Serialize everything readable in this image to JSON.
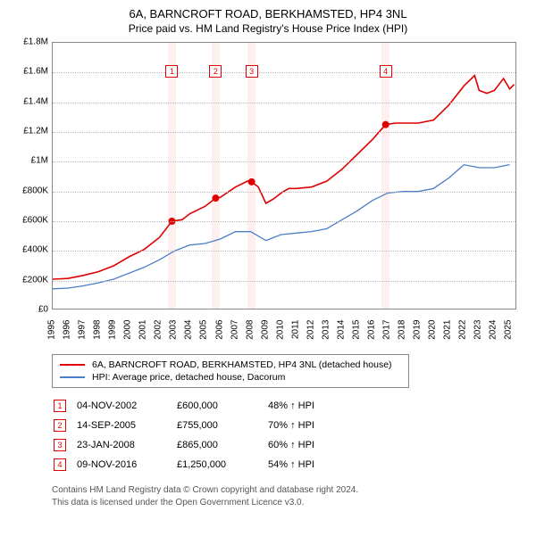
{
  "title": "6A, BARNCROFT ROAD, BERKHAMSTED, HP4 3NL",
  "subtitle": "Price paid vs. HM Land Registry's House Price Index (HPI)",
  "chart": {
    "type": "line",
    "background_color": "#ffffff",
    "grid_color": "#bbbbbb",
    "border_color": "#888888",
    "x_range": [
      1995,
      2025.5
    ],
    "y_range": [
      0,
      1800000
    ],
    "y_ticks": [
      0,
      200000,
      400000,
      600000,
      800000,
      1000000,
      1200000,
      1400000,
      1600000,
      1800000
    ],
    "y_tick_labels": [
      "£0",
      "£200K",
      "£400K",
      "£600K",
      "£800K",
      "£1M",
      "£1.2M",
      "£1.4M",
      "£1.6M",
      "£1.8M"
    ],
    "x_ticks": [
      1995,
      1996,
      1997,
      1998,
      1999,
      2000,
      2001,
      2002,
      2003,
      2004,
      2005,
      2006,
      2007,
      2008,
      2009,
      2010,
      2011,
      2012,
      2013,
      2014,
      2015,
      2016,
      2017,
      2018,
      2019,
      2020,
      2021,
      2022,
      2023,
      2024,
      2025
    ],
    "label_fontsize": 10,
    "title_fontsize": 13,
    "series": [
      {
        "name": "6A, BARNCROFT ROAD, BERKHAMSTED, HP4 3NL (detached house)",
        "color": "#e00000",
        "line_width": 1.6,
        "points": [
          [
            1995,
            210000
          ],
          [
            1996,
            215000
          ],
          [
            1997,
            235000
          ],
          [
            1998,
            260000
          ],
          [
            1999,
            300000
          ],
          [
            2000,
            360000
          ],
          [
            2001,
            410000
          ],
          [
            2002,
            490000
          ],
          [
            2002.83,
            600000
          ],
          [
            2003.5,
            610000
          ],
          [
            2004,
            650000
          ],
          [
            2005,
            700000
          ],
          [
            2005.7,
            755000
          ],
          [
            2006,
            760000
          ],
          [
            2007,
            830000
          ],
          [
            2007.8,
            870000
          ],
          [
            2008.06,
            865000
          ],
          [
            2008.5,
            830000
          ],
          [
            2009,
            720000
          ],
          [
            2009.5,
            750000
          ],
          [
            2010,
            790000
          ],
          [
            2010.5,
            820000
          ],
          [
            2011,
            820000
          ],
          [
            2012,
            830000
          ],
          [
            2013,
            870000
          ],
          [
            2014,
            950000
          ],
          [
            2015,
            1050000
          ],
          [
            2016,
            1150000
          ],
          [
            2016.86,
            1250000
          ],
          [
            2017.5,
            1260000
          ],
          [
            2018,
            1260000
          ],
          [
            2019,
            1260000
          ],
          [
            2020,
            1280000
          ],
          [
            2021,
            1380000
          ],
          [
            2022,
            1510000
          ],
          [
            2022.7,
            1580000
          ],
          [
            2023,
            1480000
          ],
          [
            2023.5,
            1460000
          ],
          [
            2024,
            1480000
          ],
          [
            2024.6,
            1560000
          ],
          [
            2025,
            1490000
          ],
          [
            2025.3,
            1520000
          ]
        ]
      },
      {
        "name": "HPI: Average price, detached house, Dacorum",
        "color": "#4a7ec8",
        "line_width": 1.3,
        "points": [
          [
            1995,
            145000
          ],
          [
            1996,
            150000
          ],
          [
            1997,
            165000
          ],
          [
            1998,
            185000
          ],
          [
            1999,
            210000
          ],
          [
            2000,
            250000
          ],
          [
            2001,
            290000
          ],
          [
            2002,
            340000
          ],
          [
            2003,
            400000
          ],
          [
            2004,
            440000
          ],
          [
            2005,
            450000
          ],
          [
            2006,
            480000
          ],
          [
            2007,
            530000
          ],
          [
            2008,
            530000
          ],
          [
            2009,
            470000
          ],
          [
            2010,
            510000
          ],
          [
            2011,
            520000
          ],
          [
            2012,
            530000
          ],
          [
            2013,
            550000
          ],
          [
            2014,
            610000
          ],
          [
            2015,
            670000
          ],
          [
            2016,
            740000
          ],
          [
            2017,
            790000
          ],
          [
            2018,
            800000
          ],
          [
            2019,
            800000
          ],
          [
            2020,
            820000
          ],
          [
            2021,
            890000
          ],
          [
            2022,
            980000
          ],
          [
            2023,
            960000
          ],
          [
            2024,
            960000
          ],
          [
            2025,
            980000
          ]
        ]
      }
    ],
    "sale_markers": [
      {
        "num": "1",
        "x": 2002.83,
        "y": 600000
      },
      {
        "num": "2",
        "x": 2005.7,
        "y": 755000
      },
      {
        "num": "3",
        "x": 2008.06,
        "y": 865000
      },
      {
        "num": "4",
        "x": 2016.86,
        "y": 1250000
      }
    ],
    "sale_band_color": "rgba(255,0,0,0.06)",
    "sale_band_half_width_years": 0.25,
    "marker_box_top_y": 1650000
  },
  "legend": {
    "items": [
      {
        "color": "#e00000",
        "label": "6A, BARNCROFT ROAD, BERKHAMSTED, HP4 3NL (detached house)"
      },
      {
        "color": "#4a7ec8",
        "label": "HPI: Average price, detached house, Dacorum"
      }
    ]
  },
  "sales_table": {
    "rows": [
      {
        "num": "1",
        "date": "04-NOV-2002",
        "price": "£600,000",
        "delta": "48% ↑ HPI"
      },
      {
        "num": "2",
        "date": "14-SEP-2005",
        "price": "£755,000",
        "delta": "70% ↑ HPI"
      },
      {
        "num": "3",
        "date": "23-JAN-2008",
        "price": "£865,000",
        "delta": "60% ↑ HPI"
      },
      {
        "num": "4",
        "date": "09-NOV-2016",
        "price": "£1,250,000",
        "delta": "54% ↑ HPI"
      }
    ]
  },
  "footer": {
    "line1": "Contains HM Land Registry data © Crown copyright and database right 2024.",
    "line2": "This data is licensed under the Open Government Licence v3.0."
  }
}
